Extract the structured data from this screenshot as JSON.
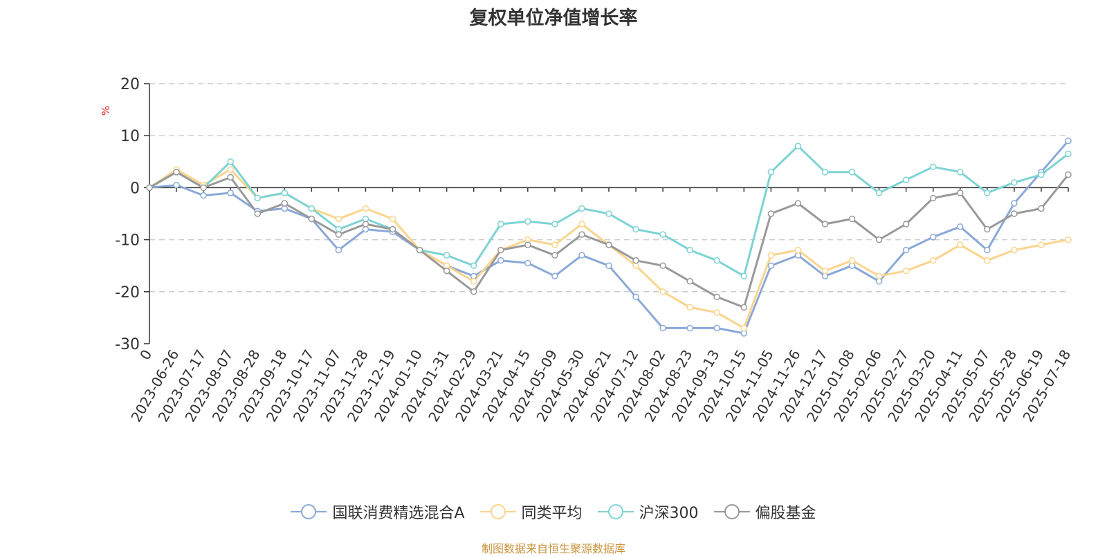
{
  "chart_data": {
    "type": "line",
    "title": "复权单位净值增长率",
    "ylabel": "%",
    "ylim": [
      -30,
      20
    ],
    "yticks": [
      20,
      10,
      0,
      -10,
      -20,
      -30
    ],
    "grid": true,
    "legend_position": "bottom-center",
    "source": "制图数据来自恒生聚源数据库",
    "x": [
      "0",
      "2023-06-26",
      "2023-07-17",
      "2023-08-07",
      "2023-08-28",
      "2023-09-18",
      "2023-10-17",
      "2023-11-07",
      "2023-11-28",
      "2023-12-19",
      "2024-01-10",
      "2024-01-31",
      "2024-02-29",
      "2024-03-21",
      "2024-04-15",
      "2024-05-09",
      "2024-05-30",
      "2024-06-21",
      "2024-07-12",
      "2024-08-02",
      "2024-08-23",
      "2024-09-13",
      "2024-10-15",
      "2024-11-05",
      "2024-11-26",
      "2024-12-17",
      "2025-01-08",
      "2025-02-06",
      "2025-02-27",
      "2025-03-20",
      "2025-04-11",
      "2025-05-07",
      "2025-05-28",
      "2025-06-19",
      "2025-07-18"
    ],
    "series": [
      {
        "name": "国联消费精选混合A",
        "color": "#8aa8d8",
        "values": [
          0,
          0.5,
          -1.5,
          -1,
          -4.5,
          -4,
          -6,
          -12,
          -8,
          -8.5,
          -12,
          -15,
          -17,
          -14,
          -14.5,
          -17,
          -13,
          -15,
          -21,
          -27,
          -27,
          -27,
          -28,
          -15,
          -13,
          -17,
          -15,
          -18,
          -12,
          -9.5,
          -7.5,
          -12,
          -3,
          3,
          9
        ]
      },
      {
        "name": "同类平均",
        "color": "#fbd48c",
        "values": [
          0,
          3.5,
          0.5,
          3.5,
          -2,
          -1,
          -4,
          -6,
          -4,
          -6,
          -12,
          -15,
          -18,
          -12,
          -10,
          -11,
          -7,
          -11,
          -15,
          -20,
          -23,
          -24,
          -27,
          -13,
          -12,
          -16,
          -14,
          -17,
          -16,
          -14,
          -11,
          -14,
          -12,
          -11,
          -10
        ]
      },
      {
        "name": "沪深300",
        "color": "#7dd3d3",
        "values": [
          0,
          3,
          0,
          5,
          -2,
          -1,
          -4,
          -8,
          -6,
          -8,
          -12,
          -13,
          -15,
          -7,
          -6.5,
          -7,
          -4,
          -5,
          -8,
          -9,
          -12,
          -14,
          -17,
          3,
          8,
          3,
          3,
          -1,
          1.5,
          4,
          3,
          -1,
          1,
          2.5,
          6.5
        ]
      },
      {
        "name": "偏股基金",
        "color": "#999999",
        "values": [
          0,
          3,
          0,
          2,
          -5,
          -3,
          -6,
          -9,
          -7,
          -8,
          -12,
          -16,
          -20,
          -12,
          -11,
          -13,
          -9,
          -11,
          -14,
          -15,
          -18,
          -21,
          -23,
          -5,
          -3,
          -7,
          -6,
          -10,
          -7,
          -2,
          -1,
          -8,
          -5,
          -4,
          2.5
        ]
      }
    ]
  }
}
